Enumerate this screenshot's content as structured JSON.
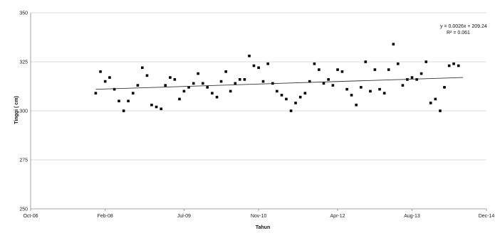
{
  "chart_data": {
    "type": "scatter",
    "title": "",
    "xlabel": "Tahun",
    "ylabel": "Tinggi ( cm)",
    "xlim": [
      "2006-10-01",
      "2014-12-01"
    ],
    "ylim": [
      250,
      350
    ],
    "x_ticks": [
      {
        "date": "2006-10-01",
        "label": "Oct-06"
      },
      {
        "date": "2008-02-01",
        "label": "Feb-08"
      },
      {
        "date": "2009-07-01",
        "label": "Jul-09"
      },
      {
        "date": "2010-11-01",
        "label": "Nov-10"
      },
      {
        "date": "2012-04-01",
        "label": "Apr-12"
      },
      {
        "date": "2013-08-01",
        "label": "Aug-13"
      },
      {
        "date": "2014-12-01",
        "label": "Dec-14"
      }
    ],
    "y_ticks": [
      250,
      275,
      300,
      325,
      350
    ],
    "grid": "horizontal",
    "trendline": {
      "equation": "y = 0.0026x + 209.24",
      "r_squared": "R² = 0.061",
      "start": {
        "x": "2007-12-01",
        "y": 311.0
      },
      "end": {
        "x": "2014-07-01",
        "y": 317.0
      }
    },
    "series": [
      {
        "marker_color": "#000000",
        "points": [
          {
            "x": "2007-12-01",
            "y": 309
          },
          {
            "x": "2008-01-01",
            "y": 320
          },
          {
            "x": "2008-02-01",
            "y": 315
          },
          {
            "x": "2008-03-01",
            "y": 317
          },
          {
            "x": "2008-04-01",
            "y": 311
          },
          {
            "x": "2008-05-01",
            "y": 305
          },
          {
            "x": "2008-06-01",
            "y": 300
          },
          {
            "x": "2008-07-01",
            "y": 305
          },
          {
            "x": "2008-08-01",
            "y": 309
          },
          {
            "x": "2008-09-01",
            "y": 313
          },
          {
            "x": "2008-10-01",
            "y": 322
          },
          {
            "x": "2008-11-01",
            "y": 318
          },
          {
            "x": "2008-12-01",
            "y": 303
          },
          {
            "x": "2009-01-01",
            "y": 302
          },
          {
            "x": "2009-02-01",
            "y": 301
          },
          {
            "x": "2009-03-01",
            "y": 313
          },
          {
            "x": "2009-04-01",
            "y": 317
          },
          {
            "x": "2009-05-01",
            "y": 316
          },
          {
            "x": "2009-06-01",
            "y": 306
          },
          {
            "x": "2009-07-01",
            "y": 310
          },
          {
            "x": "2009-08-01",
            "y": 312
          },
          {
            "x": "2009-09-01",
            "y": 314
          },
          {
            "x": "2009-10-01",
            "y": 319
          },
          {
            "x": "2009-11-01",
            "y": 314
          },
          {
            "x": "2009-12-01",
            "y": 312
          },
          {
            "x": "2010-01-01",
            "y": 309
          },
          {
            "x": "2010-02-01",
            "y": 307
          },
          {
            "x": "2010-03-01",
            "y": 315
          },
          {
            "x": "2010-04-01",
            "y": 320
          },
          {
            "x": "2010-05-01",
            "y": 310
          },
          {
            "x": "2010-06-01",
            "y": 314
          },
          {
            "x": "2010-07-01",
            "y": 316
          },
          {
            "x": "2010-08-01",
            "y": 316
          },
          {
            "x": "2010-09-01",
            "y": 328
          },
          {
            "x": "2010-10-01",
            "y": 323
          },
          {
            "x": "2010-11-01",
            "y": 322
          },
          {
            "x": "2010-12-01",
            "y": 315
          },
          {
            "x": "2011-01-01",
            "y": 324
          },
          {
            "x": "2011-02-01",
            "y": 314
          },
          {
            "x": "2011-03-01",
            "y": 310
          },
          {
            "x": "2011-04-01",
            "y": 308
          },
          {
            "x": "2011-05-01",
            "y": 306
          },
          {
            "x": "2011-06-01",
            "y": 300
          },
          {
            "x": "2011-07-01",
            "y": 304
          },
          {
            "x": "2011-08-01",
            "y": 307
          },
          {
            "x": "2011-09-01",
            "y": 309
          },
          {
            "x": "2011-10-01",
            "y": 315
          },
          {
            "x": "2011-11-01",
            "y": 324
          },
          {
            "x": "2011-12-01",
            "y": 321
          },
          {
            "x": "2012-01-01",
            "y": 314
          },
          {
            "x": "2012-02-01",
            "y": 316
          },
          {
            "x": "2012-03-01",
            "y": 313
          },
          {
            "x": "2012-04-01",
            "y": 321
          },
          {
            "x": "2012-05-01",
            "y": 320
          },
          {
            "x": "2012-06-01",
            "y": 311
          },
          {
            "x": "2012-07-01",
            "y": 308
          },
          {
            "x": "2012-08-01",
            "y": 303
          },
          {
            "x": "2012-09-01",
            "y": 312
          },
          {
            "x": "2012-10-01",
            "y": 325
          },
          {
            "x": "2012-11-01",
            "y": 310
          },
          {
            "x": "2012-12-01",
            "y": 321
          },
          {
            "x": "2013-01-01",
            "y": 311
          },
          {
            "x": "2013-02-01",
            "y": 309
          },
          {
            "x": "2013-03-01",
            "y": 321
          },
          {
            "x": "2013-04-01",
            "y": 334
          },
          {
            "x": "2013-05-01",
            "y": 324
          },
          {
            "x": "2013-06-01",
            "y": 313
          },
          {
            "x": "2013-07-01",
            "y": 316
          },
          {
            "x": "2013-08-01",
            "y": 317
          },
          {
            "x": "2013-09-01",
            "y": 316
          },
          {
            "x": "2013-10-01",
            "y": 319
          },
          {
            "x": "2013-11-01",
            "y": 325
          },
          {
            "x": "2013-12-01",
            "y": 304
          },
          {
            "x": "2014-01-01",
            "y": 306
          },
          {
            "x": "2014-02-01",
            "y": 300
          },
          {
            "x": "2014-03-01",
            "y": 312
          },
          {
            "x": "2014-04-01",
            "y": 323
          },
          {
            "x": "2014-05-01",
            "y": 324
          },
          {
            "x": "2014-06-01",
            "y": 323
          }
        ]
      }
    ]
  }
}
